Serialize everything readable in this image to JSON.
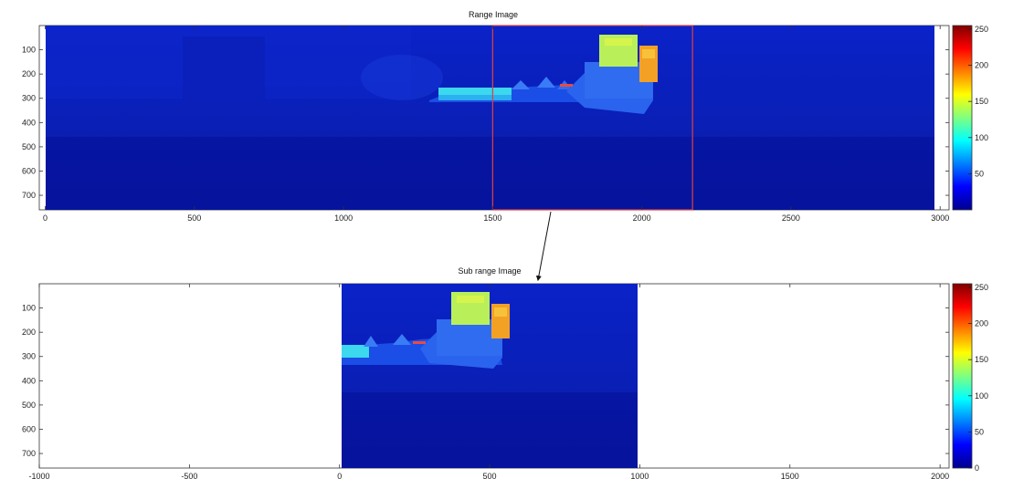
{
  "chart_data": [
    {
      "type": "heatmap",
      "title": "Range Image",
      "xlim": [
        -20,
        3030
      ],
      "ylim": [
        760,
        0
      ],
      "x_ticks": [
        "0",
        "500",
        "1000",
        "1500",
        "2000",
        "2500",
        "3000"
      ],
      "y_ticks": [
        "100",
        "200",
        "300",
        "400",
        "500",
        "600",
        "700"
      ],
      "x_tick_values": [
        0,
        500,
        1000,
        1500,
        2000,
        2500,
        3000
      ],
      "y_tick_values": [
        100,
        200,
        300,
        400,
        500,
        600,
        700
      ],
      "image_extent": {
        "x": [
          0,
          3000
        ],
        "y": [
          0,
          760
        ]
      },
      "selection_box": {
        "x": [
          1500,
          2170
        ],
        "y": [
          0,
          760
        ],
        "color": "#e04040"
      },
      "colorbar": {
        "ticks": [
          "250",
          "200",
          "150",
          "100",
          "50"
        ],
        "tick_values": [
          250,
          200,
          150,
          100,
          50
        ],
        "range": [
          0,
          255
        ],
        "colormap": "jet"
      }
    },
    {
      "type": "heatmap",
      "title": "Sub range Image",
      "xlim": [
        -1000,
        2030
      ],
      "ylim": [
        760,
        0
      ],
      "x_ticks": [
        "-1000",
        "-500",
        "0",
        "500",
        "1000",
        "1500",
        "2000"
      ],
      "y_ticks": [
        "100",
        "200",
        "300",
        "400",
        "500",
        "600",
        "700"
      ],
      "x_tick_values": [
        -1000,
        -500,
        0,
        500,
        1000,
        1500,
        2000
      ],
      "y_tick_values": [
        100,
        200,
        300,
        400,
        500,
        600,
        700
      ],
      "image_extent": {
        "x": [
          0,
          1000
        ],
        "y": [
          0,
          760
        ]
      },
      "colorbar": {
        "ticks": [
          "250",
          "200",
          "150",
          "100",
          "50",
          "0"
        ],
        "tick_values": [
          250,
          200,
          150,
          100,
          50,
          0
        ],
        "range": [
          0,
          255
        ],
        "colormap": "jet"
      }
    }
  ],
  "colors": {
    "background_range": "#0a1fb5",
    "deep_range": "#06129a",
    "selection_box": "#e04040",
    "arrow": "#111111"
  }
}
